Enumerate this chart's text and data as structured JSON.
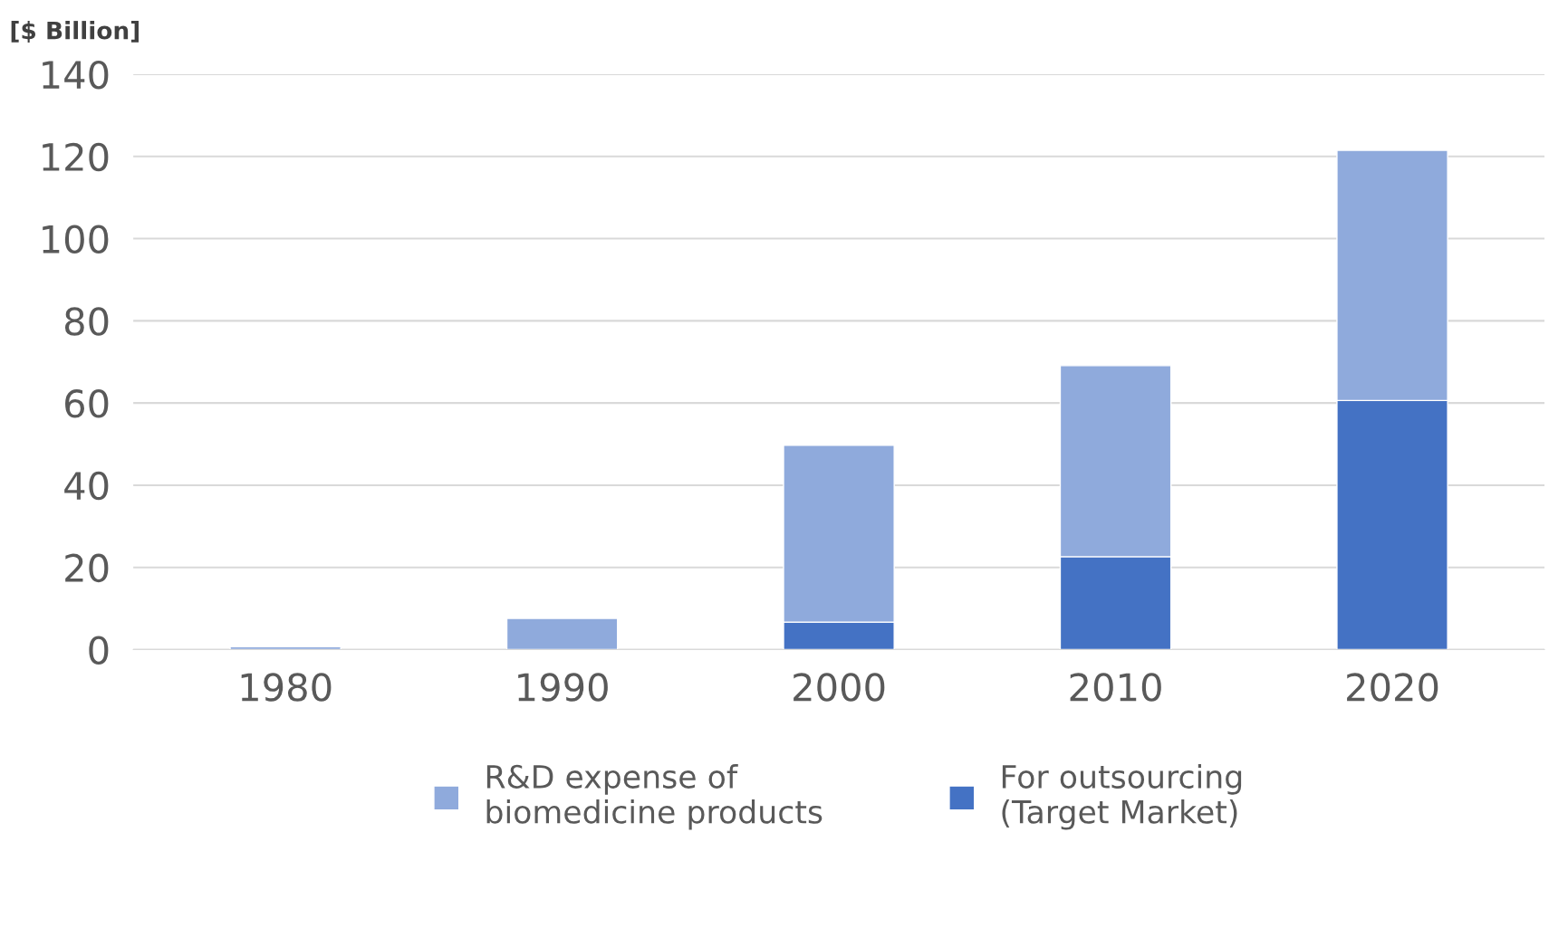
{
  "chart_data": {
    "type": "bar",
    "stacked": true,
    "ylabel": "[$ Billion]",
    "categories": [
      "1980",
      "1990",
      "2000",
      "2010",
      "2020"
    ],
    "series": [
      {
        "name": "For outsourcing\n(Target Market)",
        "color": "#4472c4",
        "values": [
          0,
          0,
          6.7,
          22.6,
          60.6
        ]
      },
      {
        "name": "R&D expense of\nbiomedicine products",
        "color": "#8faadc",
        "values": [
          0.7,
          7.6,
          43,
          46.5,
          60.9
        ]
      }
    ],
    "ylim": [
      0,
      140
    ],
    "yticks": [
      0,
      20,
      40,
      60,
      80,
      100,
      120,
      140
    ],
    "grid": "y",
    "legend": "bottom"
  }
}
